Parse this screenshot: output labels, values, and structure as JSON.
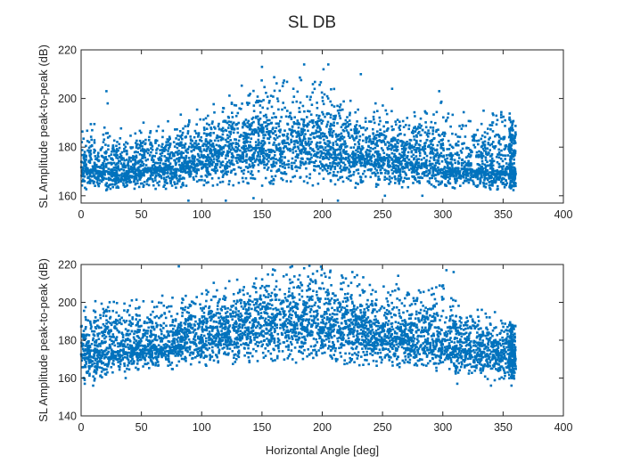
{
  "figure": {
    "title": "SL DB"
  },
  "chart_data": [
    {
      "type": "scatter",
      "ylabel": "SL Amplitude peak-to-peak (dB)",
      "xlabel": "",
      "xlim": [
        0,
        400
      ],
      "ylim": [
        157,
        220
      ],
      "xticks": [
        0,
        50,
        100,
        150,
        200,
        250,
        300,
        350,
        400
      ],
      "yticks": [
        160,
        180,
        200,
        220
      ],
      "grid": false,
      "marker_color": "#0072BD",
      "envelope": {
        "x": [
          0,
          25,
          50,
          75,
          100,
          125,
          150,
          175,
          200,
          225,
          250,
          275,
          300,
          325,
          350,
          360
        ],
        "center": [
          172,
          169,
          171,
          172,
          176,
          179,
          181,
          183,
          181,
          178,
          176,
          174,
          172,
          171,
          170,
          172
        ],
        "low": [
          163,
          162,
          163,
          163,
          164,
          164,
          165,
          165,
          165,
          164,
          164,
          163,
          163,
          163,
          163,
          163
        ],
        "high": [
          186,
          190,
          188,
          189,
          194,
          201,
          206,
          209,
          207,
          199,
          195,
          193,
          196,
          192,
          196,
          190
        ]
      },
      "outliers_high": [
        [
          21,
          203
        ],
        [
          22,
          198
        ],
        [
          150,
          213
        ],
        [
          185,
          214
        ],
        [
          201,
          212
        ],
        [
          205,
          214
        ],
        [
          232,
          210
        ],
        [
          258,
          204
        ],
        [
          297,
          203
        ]
      ],
      "outliers_low": [
        [
          89,
          158
        ],
        [
          120,
          158
        ],
        [
          143,
          159
        ],
        [
          213,
          158
        ],
        [
          252,
          160
        ],
        [
          283,
          160
        ]
      ]
    },
    {
      "type": "scatter",
      "ylabel": "SL Amplitude peak-to-peak (dB)",
      "xlabel": "Horizontal Angle [deg]",
      "xlim": [
        0,
        400
      ],
      "ylim": [
        140,
        220
      ],
      "xticks": [
        0,
        50,
        100,
        150,
        200,
        250,
        300,
        350,
        400
      ],
      "yticks": [
        140,
        160,
        180,
        200,
        220
      ],
      "grid": false,
      "marker_color": "#0072BD",
      "envelope": {
        "x": [
          0,
          25,
          50,
          75,
          100,
          125,
          150,
          175,
          200,
          225,
          250,
          275,
          300,
          325,
          350,
          360
        ],
        "center": [
          175,
          174,
          177,
          177,
          181,
          185,
          189,
          190,
          189,
          186,
          183,
          181,
          178,
          175,
          172,
          174
        ],
        "low": [
          158,
          161,
          164,
          164,
          167,
          168,
          169,
          169,
          168,
          167,
          166,
          166,
          164,
          161,
          159,
          160
        ],
        "high": [
          195,
          201,
          200,
          202,
          206,
          210,
          214,
          218,
          217,
          212,
          208,
          206,
          209,
          197,
          190,
          188
        ]
      },
      "outliers_high": [
        [
          81,
          219
        ],
        [
          175,
          219
        ],
        [
          185,
          218
        ],
        [
          225,
          216
        ],
        [
          263,
          214
        ],
        [
          303,
          217
        ],
        [
          309,
          216
        ]
      ],
      "outliers_low": [
        [
          3,
          157
        ],
        [
          10,
          156
        ],
        [
          37,
          160
        ],
        [
          312,
          157
        ],
        [
          340,
          156
        ],
        [
          357,
          156
        ]
      ]
    }
  ]
}
